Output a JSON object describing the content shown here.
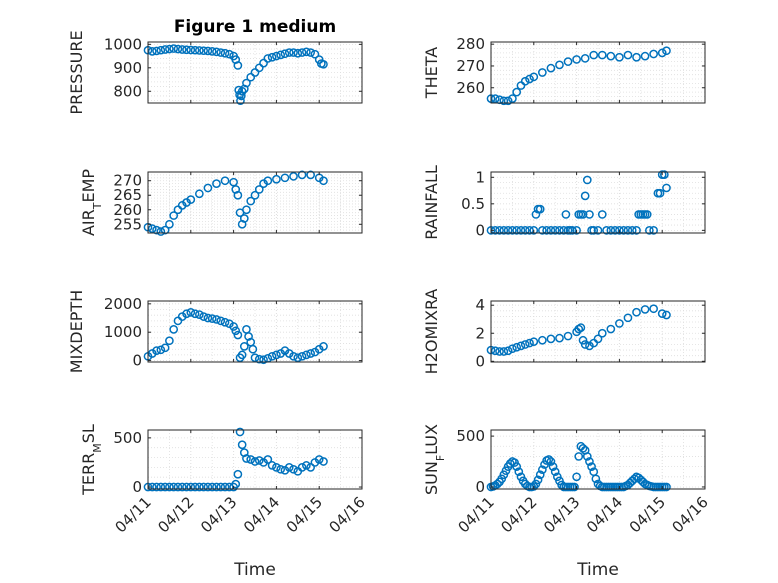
{
  "chart_data": [
    {
      "type": "scatter",
      "panel": "pressure",
      "title": "Figure 1 medium",
      "ylabel": "PRESSURE",
      "ylim": [
        750,
        1010
      ],
      "yticks": [
        "800",
        "900",
        "1000"
      ],
      "ytick_values": [
        800,
        900,
        1000
      ],
      "xlim": [
        0,
        5
      ],
      "grid": true,
      "marker": "open-circle",
      "x": [
        0,
        0.1,
        0.2,
        0.3,
        0.4,
        0.5,
        0.6,
        0.7,
        0.8,
        0.9,
        1.0,
        1.1,
        1.2,
        1.3,
        1.4,
        1.5,
        1.6,
        1.7,
        1.8,
        1.9,
        2.0,
        2.05,
        2.1,
        2.12,
        2.14,
        2.16,
        2.18,
        2.2,
        2.25,
        2.3,
        2.4,
        2.5,
        2.6,
        2.7,
        2.8,
        2.9,
        3.0,
        3.1,
        3.2,
        3.3,
        3.4,
        3.5,
        3.6,
        3.7,
        3.8,
        3.9,
        4.0,
        4.05,
        4.1
      ],
      "y": [
        975,
        970,
        972,
        975,
        978,
        980,
        982,
        980,
        978,
        977,
        976,
        975,
        974,
        973,
        972,
        970,
        968,
        965,
        962,
        958,
        950,
        935,
        910,
        805,
        785,
        760,
        780,
        800,
        810,
        835,
        860,
        880,
        900,
        920,
        940,
        945,
        950,
        955,
        960,
        965,
        965,
        962,
        965,
        968,
        965,
        958,
        935,
        918,
        915
      ]
    },
    {
      "type": "scatter",
      "panel": "theta",
      "ylabel": "THETA",
      "ylim": [
        253,
        281
      ],
      "yticks": [
        "260",
        "270",
        "280"
      ],
      "ytick_values": [
        260,
        270,
        280
      ],
      "xlim": [
        0,
        5
      ],
      "grid": true,
      "marker": "open-circle",
      "x": [
        0,
        0.1,
        0.2,
        0.3,
        0.4,
        0.5,
        0.6,
        0.7,
        0.8,
        0.9,
        1.0,
        1.2,
        1.4,
        1.6,
        1.8,
        2.0,
        2.2,
        2.4,
        2.6,
        2.8,
        3.0,
        3.2,
        3.4,
        3.6,
        3.8,
        4.0,
        4.1
      ],
      "y": [
        255,
        255,
        254.5,
        254,
        254,
        255,
        258,
        261,
        263,
        264,
        265,
        267,
        269,
        270.5,
        272,
        273,
        273.5,
        275,
        275,
        274.5,
        274,
        275,
        274,
        274.5,
        275.5,
        276,
        277
      ]
    },
    {
      "type": "scatter",
      "panel": "air_temp",
      "ylabel": "AIR_TEMP",
      "ylim": [
        252,
        273
      ],
      "yticks": [
        "255",
        "260",
        "265",
        "270"
      ],
      "ytick_values": [
        255,
        260,
        265,
        270
      ],
      "xlim": [
        0,
        5
      ],
      "grid": true,
      "marker": "open-circle",
      "x": [
        0,
        0.1,
        0.2,
        0.3,
        0.4,
        0.5,
        0.6,
        0.7,
        0.8,
        0.9,
        1.0,
        1.2,
        1.4,
        1.6,
        1.8,
        2.0,
        2.05,
        2.1,
        2.15,
        2.2,
        2.25,
        2.3,
        2.4,
        2.5,
        2.6,
        2.7,
        2.8,
        3.0,
        3.2,
        3.4,
        3.6,
        3.8,
        4.0,
        4.1
      ],
      "y": [
        254,
        253.5,
        253,
        252.5,
        253,
        255,
        258,
        260,
        261.5,
        262.5,
        263.5,
        265.5,
        267.5,
        269,
        270,
        269.5,
        267,
        265,
        259,
        255,
        257,
        260,
        263,
        265,
        267,
        269,
        270,
        270.5,
        271,
        271.5,
        272,
        272,
        271,
        270
      ]
    },
    {
      "type": "scatter",
      "panel": "rainfall",
      "ylabel": "RAINFALL",
      "ylim": [
        -0.05,
        1.1
      ],
      "yticks": [
        "0",
        "0.5",
        "1"
      ],
      "ytick_values": [
        0,
        0.5,
        1
      ],
      "xlim": [
        0,
        5
      ],
      "grid": true,
      "marker": "open-circle",
      "x": [
        0,
        0.1,
        0.2,
        0.3,
        0.4,
        0.5,
        0.6,
        0.7,
        0.8,
        0.9,
        1.0,
        1.05,
        1.1,
        1.15,
        1.2,
        1.3,
        1.4,
        1.5,
        1.6,
        1.7,
        1.75,
        1.8,
        1.85,
        1.9,
        2.0,
        2.05,
        2.1,
        2.15,
        2.2,
        2.25,
        2.3,
        2.35,
        2.4,
        2.5,
        2.6,
        2.7,
        2.8,
        2.9,
        3.0,
        3.1,
        3.2,
        3.3,
        3.4,
        3.45,
        3.5,
        3.55,
        3.6,
        3.65,
        3.7,
        3.8,
        3.9,
        3.95,
        4.0,
        4.05,
        4.1
      ],
      "y": [
        0,
        0,
        0,
        0,
        0,
        0,
        0,
        0,
        0,
        0,
        0,
        0.3,
        0.4,
        0.4,
        0,
        0,
        0,
        0,
        0,
        0,
        0.3,
        0,
        0,
        0,
        0,
        0.3,
        0.3,
        0.3,
        0.65,
        0.95,
        0.3,
        0,
        0,
        0,
        0.3,
        0,
        0,
        0,
        0,
        0,
        0,
        0,
        0,
        0.3,
        0.3,
        0.3,
        0.3,
        0.3,
        0,
        0,
        0.7,
        0.7,
        1.05,
        1.05,
        0.8
      ]
    },
    {
      "type": "scatter",
      "panel": "mixdepth",
      "ylabel": "MIXDEPTH",
      "ylim": [
        -50,
        2100
      ],
      "yticks": [
        "0",
        "1000",
        "2000"
      ],
      "ytick_values": [
        0,
        1000,
        2000
      ],
      "xlim": [
        0,
        5
      ],
      "grid": true,
      "marker": "open-circle",
      "x": [
        0,
        0.1,
        0.2,
        0.3,
        0.4,
        0.5,
        0.6,
        0.7,
        0.8,
        0.9,
        1.0,
        1.1,
        1.2,
        1.3,
        1.4,
        1.5,
        1.6,
        1.7,
        1.8,
        1.9,
        2.0,
        2.05,
        2.1,
        2.15,
        2.2,
        2.25,
        2.3,
        2.35,
        2.4,
        2.45,
        2.5,
        2.6,
        2.7,
        2.8,
        2.9,
        3.0,
        3.1,
        3.2,
        3.3,
        3.4,
        3.5,
        3.6,
        3.7,
        3.8,
        3.9,
        4.0,
        4.1
      ],
      "y": [
        150,
        250,
        350,
        380,
        450,
        700,
        1100,
        1400,
        1550,
        1650,
        1700,
        1650,
        1620,
        1550,
        1500,
        1480,
        1450,
        1400,
        1350,
        1300,
        1200,
        1050,
        900,
        100,
        200,
        500,
        1100,
        850,
        650,
        400,
        100,
        50,
        30,
        80,
        150,
        200,
        250,
        350,
        250,
        150,
        100,
        150,
        200,
        250,
        300,
        400,
        500
      ]
    },
    {
      "type": "scatter",
      "panel": "h2omixra",
      "ylabel": "H2OMIXRA",
      "ylim": [
        -0.05,
        4.3
      ],
      "yticks": [
        "0",
        "2",
        "4"
      ],
      "ytick_values": [
        0,
        2,
        4
      ],
      "xlim": [
        0,
        5
      ],
      "grid": true,
      "marker": "open-circle",
      "x": [
        0,
        0.1,
        0.2,
        0.3,
        0.4,
        0.5,
        0.6,
        0.7,
        0.8,
        0.9,
        1.0,
        1.2,
        1.4,
        1.6,
        1.8,
        2.0,
        2.05,
        2.1,
        2.15,
        2.2,
        2.3,
        2.4,
        2.5,
        2.6,
        2.8,
        3.0,
        3.2,
        3.4,
        3.6,
        3.8,
        4.0,
        4.1
      ],
      "y": [
        0.8,
        0.75,
        0.7,
        0.7,
        0.75,
        0.9,
        1.0,
        1.1,
        1.2,
        1.3,
        1.4,
        1.5,
        1.6,
        1.65,
        1.8,
        2.1,
        2.3,
        2.4,
        1.5,
        1.2,
        1.1,
        1.3,
        1.6,
        2.0,
        2.3,
        2.7,
        3.1,
        3.5,
        3.7,
        3.75,
        3.4,
        3.3
      ]
    },
    {
      "type": "scatter",
      "panel": "terr_msl",
      "ylabel": "TERR_MSL",
      "ylim": [
        -20,
        580
      ],
      "yticks": [
        "0",
        "500"
      ],
      "ytick_values": [
        0,
        500
      ],
      "xlim": [
        0,
        5
      ],
      "grid": true,
      "marker": "open-circle",
      "xticks": [
        "04/11",
        "04/12",
        "04/13",
        "04/14",
        "04/15",
        "04/16"
      ],
      "xlabel": "Time",
      "x": [
        0,
        0.1,
        0.2,
        0.3,
        0.4,
        0.5,
        0.6,
        0.7,
        0.8,
        0.9,
        1.0,
        1.1,
        1.2,
        1.3,
        1.4,
        1.5,
        1.6,
        1.7,
        1.8,
        1.9,
        2.0,
        2.05,
        2.1,
        2.15,
        2.2,
        2.25,
        2.3,
        2.4,
        2.5,
        2.6,
        2.7,
        2.8,
        2.9,
        3.0,
        3.1,
        3.2,
        3.3,
        3.4,
        3.5,
        3.6,
        3.7,
        3.8,
        3.9,
        4.0,
        4.1
      ],
      "y": [
        0,
        0,
        0,
        0,
        0,
        0,
        0,
        0,
        0,
        0,
        0,
        0,
        0,
        0,
        0,
        0,
        0,
        0,
        0,
        0,
        0,
        30,
        130,
        560,
        430,
        350,
        290,
        280,
        260,
        270,
        250,
        280,
        220,
        200,
        180,
        170,
        200,
        180,
        160,
        200,
        220,
        200,
        250,
        280,
        260
      ]
    },
    {
      "type": "scatter",
      "panel": "sun_flux",
      "ylabel": "SUN_FLUX",
      "ylim": [
        -20,
        560
      ],
      "yticks": [
        "0",
        "500"
      ],
      "ytick_values": [
        0,
        500
      ],
      "xlim": [
        0,
        5
      ],
      "grid": true,
      "marker": "open-circle",
      "xticks": [
        "04/11",
        "04/12",
        "04/13",
        "04/14",
        "04/15",
        "04/16"
      ],
      "xlabel": "Time",
      "x": [
        0,
        0.05,
        0.1,
        0.15,
        0.2,
        0.25,
        0.3,
        0.35,
        0.4,
        0.45,
        0.5,
        0.55,
        0.6,
        0.65,
        0.7,
        0.75,
        0.8,
        0.85,
        0.9,
        0.95,
        1.0,
        1.05,
        1.1,
        1.15,
        1.2,
        1.25,
        1.3,
        1.35,
        1.4,
        1.45,
        1.5,
        1.55,
        1.6,
        1.65,
        1.7,
        1.75,
        1.8,
        1.85,
        1.9,
        1.95,
        2.0,
        2.05,
        2.1,
        2.15,
        2.2,
        2.25,
        2.3,
        2.35,
        2.4,
        2.45,
        2.5,
        2.55,
        2.6,
        2.65,
        2.7,
        2.75,
        2.8,
        2.85,
        2.9,
        2.95,
        3.0,
        3.05,
        3.1,
        3.15,
        3.2,
        3.25,
        3.3,
        3.35,
        3.4,
        3.45,
        3.5,
        3.55,
        3.6,
        3.65,
        3.7,
        3.75,
        3.8,
        3.85,
        3.9,
        3.95,
        4.0,
        4.05,
        4.1
      ],
      "y": [
        0,
        5,
        15,
        30,
        50,
        80,
        120,
        160,
        200,
        230,
        250,
        240,
        200,
        150,
        100,
        60,
        30,
        10,
        0,
        0,
        5,
        30,
        70,
        120,
        170,
        220,
        260,
        270,
        250,
        200,
        150,
        100,
        60,
        20,
        0,
        0,
        0,
        0,
        0,
        0,
        100,
        300,
        400,
        380,
        360,
        300,
        250,
        200,
        150,
        80,
        30,
        10,
        0,
        0,
        0,
        0,
        0,
        0,
        0,
        0,
        0,
        0,
        0,
        10,
        20,
        40,
        60,
        80,
        100,
        90,
        70,
        50,
        30,
        20,
        10,
        5,
        0,
        0,
        0,
        0,
        0,
        0,
        0
      ]
    }
  ]
}
